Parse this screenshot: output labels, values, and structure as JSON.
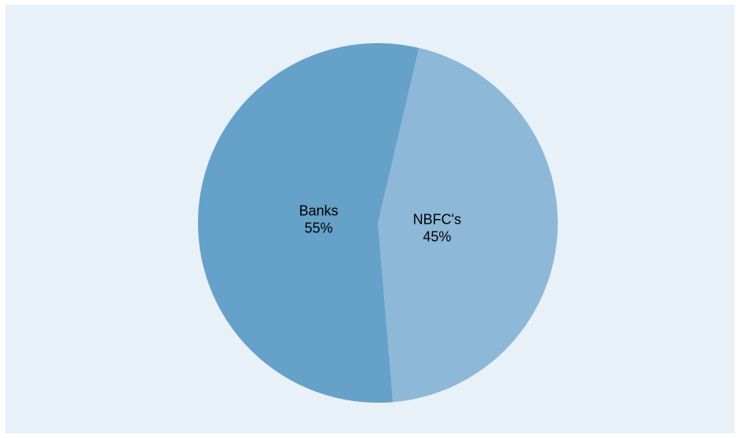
{
  "chart_data": {
    "type": "pie",
    "title": "",
    "categories": [
      "Banks",
      "NBFC's"
    ],
    "values": [
      55,
      45
    ],
    "value_labels": [
      "55%",
      "45%"
    ],
    "colors": [
      "#65a1c9",
      "#8db8d8"
    ],
    "legend": "none"
  },
  "colors": {
    "background": "#e8f0f8"
  }
}
